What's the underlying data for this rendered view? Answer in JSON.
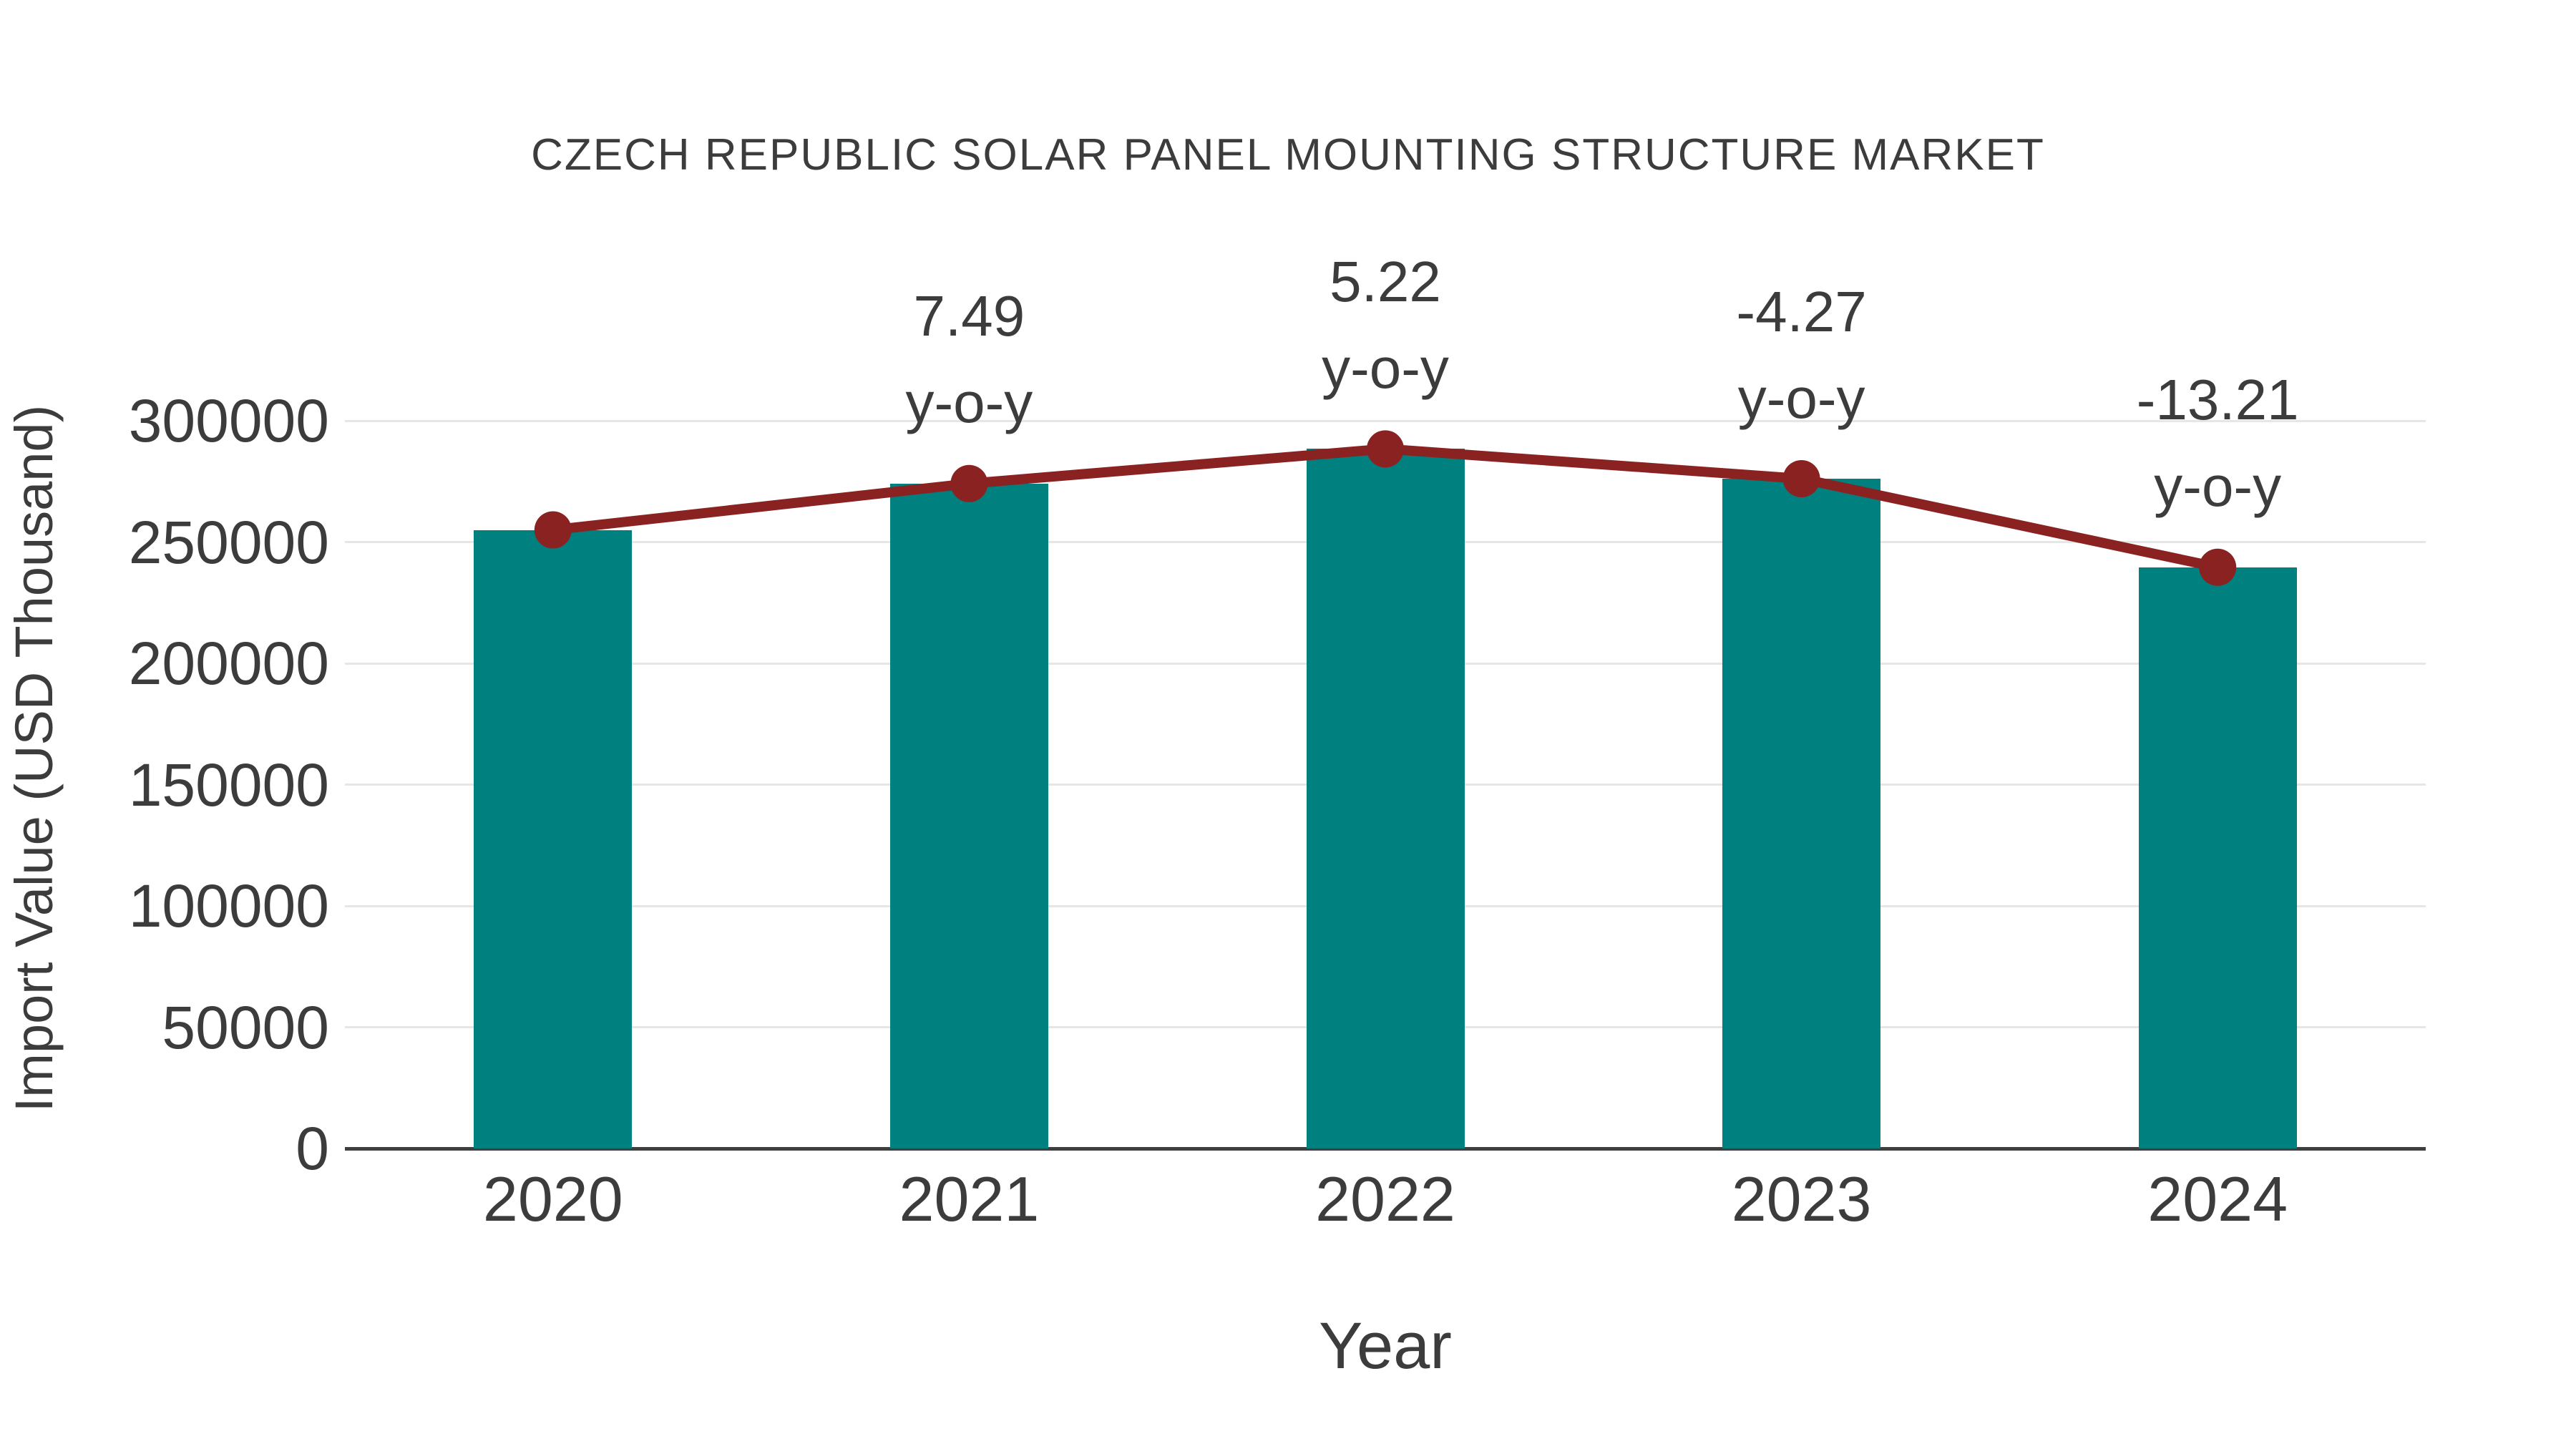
{
  "title": "CZECH REPUBLIC SOLAR PANEL MOUNTING STRUCTURE MARKET",
  "chart_data": {
    "type": "bar",
    "title": "CZECH REPUBLIC SOLAR PANEL MOUNTING STRUCTURE MARKET",
    "xlabel": "Year",
    "ylabel": "Import Value (USD Thousand)",
    "categories": [
      "2020",
      "2021",
      "2022",
      "2023",
      "2024"
    ],
    "series": [
      {
        "name": "Import Value (USD Thousand)",
        "type": "bar",
        "color": "#00807e",
        "values": [
          255000,
          274100,
          288400,
          276100,
          239600
        ]
      },
      {
        "name": "y-o-y trend line",
        "type": "line",
        "color": "#8b2222",
        "values": [
          255000,
          274100,
          288400,
          276100,
          239600
        ]
      }
    ],
    "annotations": [
      {
        "x": "2021",
        "lines": [
          "7.49",
          "y-o-y"
        ]
      },
      {
        "x": "2022",
        "lines": [
          "5.22",
          "y-o-y"
        ]
      },
      {
        "x": "2023",
        "lines": [
          "-4.27",
          "y-o-y"
        ]
      },
      {
        "x": "2024",
        "lines": [
          "-13.21",
          "y-o-y"
        ]
      }
    ],
    "yticks": [
      0,
      50000,
      100000,
      150000,
      200000,
      250000,
      300000
    ],
    "ylim": [
      0,
      300000
    ],
    "grid": true,
    "legend": "none",
    "colors": {
      "bar": "#00807e",
      "line": "#8b2222",
      "marker": "#8b2222",
      "text": "#3c3c3c",
      "grid": "#e6e6e6",
      "axis": "#3f3f3f",
      "background": "#ffffff"
    }
  }
}
